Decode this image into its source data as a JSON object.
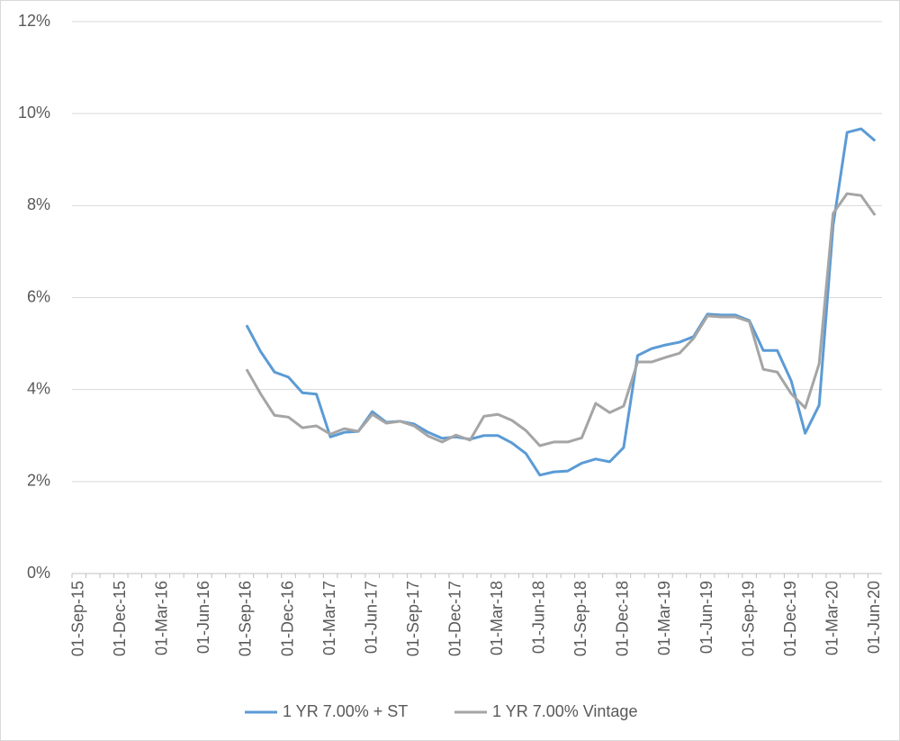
{
  "chart_data": {
    "type": "line",
    "categories": [
      "01-Sep-15",
      null,
      null,
      "01-Dec-15",
      null,
      null,
      "01-Mar-16",
      null,
      null,
      "01-Jun-16",
      null,
      null,
      "01-Sep-16",
      null,
      null,
      "01-Dec-16",
      null,
      null,
      "01-Mar-17",
      null,
      null,
      "01-Jun-17",
      null,
      null,
      "01-Sep-17",
      null,
      null,
      "01-Dec-17",
      null,
      null,
      "01-Mar-18",
      null,
      null,
      "01-Jun-18",
      null,
      null,
      "01-Sep-18",
      null,
      null,
      "01-Dec-18",
      null,
      null,
      "01-Mar-19",
      null,
      null,
      "01-Jun-19",
      null,
      null,
      "01-Sep-19",
      null,
      null,
      "01-Dec-19",
      null,
      null,
      "01-Mar-20",
      null,
      null,
      "01-Jun-20"
    ],
    "series": [
      {
        "name": "1 YR 7.00% + ST",
        "color": "#5b9bd5",
        "values": [
          null,
          null,
          null,
          null,
          null,
          null,
          null,
          null,
          null,
          null,
          null,
          null,
          5.4,
          4.83,
          4.38,
          4.27,
          3.93,
          3.9,
          2.97,
          3.07,
          3.09,
          3.52,
          3.29,
          3.31,
          3.25,
          3.07,
          2.94,
          2.97,
          2.92,
          3.0,
          3.0,
          2.84,
          2.61,
          2.14,
          2.21,
          2.23,
          2.4,
          2.49,
          2.43,
          2.74,
          4.74,
          4.89,
          4.97,
          5.03,
          5.15,
          5.64,
          5.62,
          5.62,
          5.5,
          4.85,
          4.85,
          4.19,
          3.05,
          3.66,
          7.57,
          9.59,
          9.67,
          9.41
        ]
      },
      {
        "name": "1 YR 7.00% Vintage",
        "color": "#a5a5a5",
        "values": [
          null,
          null,
          null,
          null,
          null,
          null,
          null,
          null,
          null,
          null,
          null,
          null,
          4.44,
          3.91,
          3.44,
          3.4,
          3.17,
          3.21,
          3.03,
          3.15,
          3.09,
          3.46,
          3.27,
          3.31,
          3.21,
          2.99,
          2.86,
          3.01,
          2.9,
          3.42,
          3.46,
          3.33,
          3.11,
          2.78,
          2.86,
          2.86,
          2.95,
          3.7,
          3.5,
          3.64,
          4.6,
          4.6,
          4.7,
          4.79,
          5.11,
          5.6,
          5.58,
          5.58,
          5.48,
          4.44,
          4.38,
          3.91,
          3.6,
          4.56,
          7.83,
          8.26,
          8.22,
          7.79
        ]
      }
    ],
    "ylim": [
      0,
      12
    ],
    "yticks": [
      {
        "value": 0,
        "label": "0%"
      },
      {
        "value": 2,
        "label": "2%"
      },
      {
        "value": 4,
        "label": "4%"
      },
      {
        "value": 6,
        "label": "6%"
      },
      {
        "value": 8,
        "label": "8%"
      },
      {
        "value": 10,
        "label": "10%"
      },
      {
        "value": 12,
        "label": "12%"
      }
    ],
    "grid": true,
    "legend": "bottom"
  }
}
